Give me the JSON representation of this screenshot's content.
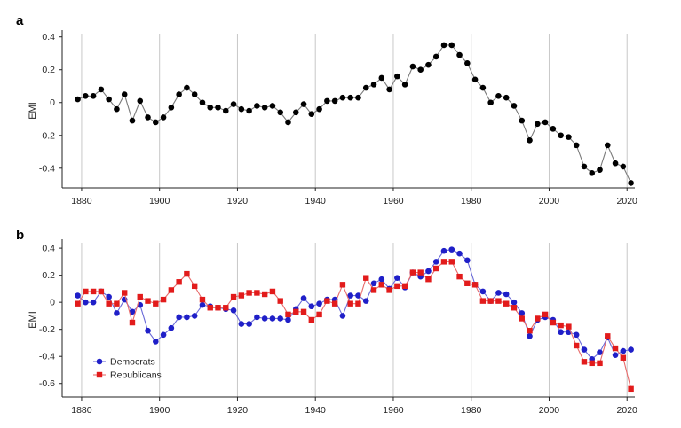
{
  "chart_data": [
    {
      "type": "line",
      "panel_label": "a",
      "xlabel": "",
      "ylabel": "EMI",
      "xlim": [
        1875,
        2022
      ],
      "ylim": [
        -0.52,
        0.42
      ],
      "xticks": [
        1880,
        1900,
        1920,
        1940,
        1960,
        1980,
        2000,
        2020
      ],
      "yticks": [
        0.4,
        0.2,
        0,
        -0.2,
        -0.4
      ],
      "ytick_labels": [
        "0.4",
        "0.2",
        "0",
        "-0.2",
        "-0.4"
      ],
      "grid": "vertical",
      "colors": {
        "series": "#000000",
        "line": "#7a7a7a"
      },
      "series": [
        {
          "marker": "circle",
          "x": [
            1879,
            1881,
            1883,
            1885,
            1887,
            1889,
            1891,
            1893,
            1895,
            1897,
            1899,
            1901,
            1903,
            1905,
            1907,
            1909,
            1911,
            1913,
            1915,
            1917,
            1919,
            1921,
            1923,
            1925,
            1927,
            1929,
            1931,
            1933,
            1935,
            1937,
            1939,
            1941,
            1943,
            1945,
            1947,
            1949,
            1951,
            1953,
            1955,
            1957,
            1959,
            1961,
            1963,
            1965,
            1967,
            1969,
            1971,
            1973,
            1975,
            1977,
            1979,
            1981,
            1983,
            1985,
            1987,
            1989,
            1991,
            1993,
            1995,
            1997,
            1999,
            2001,
            2003,
            2005,
            2007,
            2009,
            2011,
            2013,
            2015,
            2017,
            2019,
            2021
          ],
          "y": [
            0.02,
            0.04,
            0.04,
            0.08,
            0.02,
            -0.04,
            0.05,
            -0.11,
            0.01,
            -0.09,
            -0.12,
            -0.09,
            -0.03,
            0.05,
            0.09,
            0.05,
            0.0,
            -0.03,
            -0.03,
            -0.05,
            -0.01,
            -0.04,
            -0.05,
            -0.02,
            -0.03,
            -0.02,
            -0.06,
            -0.12,
            -0.06,
            -0.01,
            -0.07,
            -0.04,
            0.01,
            0.01,
            0.03,
            0.03,
            0.03,
            0.09,
            0.11,
            0.15,
            0.08,
            0.16,
            0.11,
            0.22,
            0.2,
            0.23,
            0.28,
            0.35,
            0.35,
            0.29,
            0.24,
            0.14,
            0.09,
            0.0,
            0.04,
            0.03,
            -0.02,
            -0.11,
            -0.23,
            -0.13,
            -0.12,
            -0.16,
            -0.2,
            -0.21,
            -0.26,
            -0.39,
            -0.43,
            -0.41,
            -0.26,
            -0.37,
            -0.39,
            -0.49
          ]
        }
      ]
    },
    {
      "type": "line",
      "panel_label": "b",
      "xlabel": "",
      "ylabel": "EMI",
      "xlim": [
        1875,
        2022
      ],
      "ylim": [
        -0.7,
        0.44
      ],
      "xticks": [
        1880,
        1900,
        1920,
        1940,
        1960,
        1980,
        2000,
        2020
      ],
      "yticks": [
        0.4,
        0.2,
        0,
        -0.2,
        -0.4,
        -0.6
      ],
      "ytick_labels": [
        "0.4",
        "0.2",
        "0",
        "-0.2",
        "-0.4",
        "-0.6"
      ],
      "grid": "vertical",
      "legend_position": "lower-left",
      "series": [
        {
          "name": "Democrats",
          "marker": "circle",
          "color": "#1f1fc8",
          "line_color": "#6a6ad8",
          "x": [
            1879,
            1881,
            1883,
            1885,
            1887,
            1889,
            1891,
            1893,
            1895,
            1897,
            1899,
            1901,
            1903,
            1905,
            1907,
            1909,
            1911,
            1913,
            1915,
            1917,
            1919,
            1921,
            1923,
            1925,
            1927,
            1929,
            1931,
            1933,
            1935,
            1937,
            1939,
            1941,
            1943,
            1945,
            1947,
            1949,
            1951,
            1953,
            1955,
            1957,
            1959,
            1961,
            1963,
            1965,
            1967,
            1969,
            1971,
            1973,
            1975,
            1977,
            1979,
            1981,
            1983,
            1985,
            1987,
            1989,
            1991,
            1993,
            1995,
            1997,
            1999,
            2001,
            2003,
            2005,
            2007,
            2009,
            2011,
            2013,
            2015,
            2017,
            2019,
            2021
          ],
          "y": [
            0.05,
            0.0,
            0.0,
            0.08,
            0.04,
            -0.08,
            0.02,
            -0.07,
            -0.02,
            -0.21,
            -0.29,
            -0.24,
            -0.19,
            -0.11,
            -0.11,
            -0.1,
            -0.02,
            -0.03,
            -0.04,
            -0.05,
            -0.06,
            -0.16,
            -0.16,
            -0.11,
            -0.12,
            -0.12,
            -0.12,
            -0.13,
            -0.05,
            0.03,
            -0.03,
            -0.01,
            0.02,
            0.02,
            -0.1,
            0.05,
            0.05,
            0.01,
            0.14,
            0.17,
            0.1,
            0.18,
            0.11,
            0.22,
            0.19,
            0.23,
            0.3,
            0.38,
            0.39,
            0.36,
            0.31,
            0.13,
            0.08,
            0.01,
            0.07,
            0.06,
            0.0,
            -0.08,
            -0.25,
            -0.13,
            -0.11,
            -0.13,
            -0.22,
            -0.22,
            -0.24,
            -0.35,
            -0.42,
            -0.37,
            -0.26,
            -0.39,
            -0.36,
            -0.35
          ]
        },
        {
          "name": "Republicans",
          "marker": "square",
          "color": "#e21b1b",
          "line_color": "#e86a6a",
          "x": [
            1879,
            1881,
            1883,
            1885,
            1887,
            1889,
            1891,
            1893,
            1895,
            1897,
            1899,
            1901,
            1903,
            1905,
            1907,
            1909,
            1911,
            1913,
            1915,
            1917,
            1919,
            1921,
            1923,
            1925,
            1927,
            1929,
            1931,
            1933,
            1935,
            1937,
            1939,
            1941,
            1943,
            1945,
            1947,
            1949,
            1951,
            1953,
            1955,
            1957,
            1959,
            1961,
            1963,
            1965,
            1967,
            1969,
            1971,
            1973,
            1975,
            1977,
            1979,
            1981,
            1983,
            1985,
            1987,
            1989,
            1991,
            1993,
            1995,
            1997,
            1999,
            2001,
            2003,
            2005,
            2007,
            2009,
            2011,
            2013,
            2015,
            2017,
            2019,
            2021
          ],
          "y": [
            -0.01,
            0.08,
            0.08,
            0.08,
            -0.01,
            -0.01,
            0.07,
            -0.15,
            0.04,
            0.01,
            -0.01,
            0.02,
            0.09,
            0.15,
            0.21,
            0.12,
            0.02,
            -0.04,
            -0.04,
            -0.04,
            0.04,
            0.05,
            0.07,
            0.07,
            0.06,
            0.08,
            0.01,
            -0.09,
            -0.07,
            -0.07,
            -0.13,
            -0.09,
            0.01,
            -0.01,
            0.13,
            -0.01,
            -0.01,
            0.18,
            0.09,
            0.13,
            0.09,
            0.12,
            0.12,
            0.22,
            0.22,
            0.17,
            0.25,
            0.3,
            0.3,
            0.19,
            0.14,
            0.13,
            0.01,
            0.01,
            0.01,
            -0.01,
            -0.04,
            -0.12,
            -0.21,
            -0.12,
            -0.09,
            -0.15,
            -0.17,
            -0.18,
            -0.32,
            -0.44,
            -0.45,
            -0.45,
            -0.25,
            -0.34,
            -0.41,
            -0.64
          ]
        }
      ]
    }
  ]
}
